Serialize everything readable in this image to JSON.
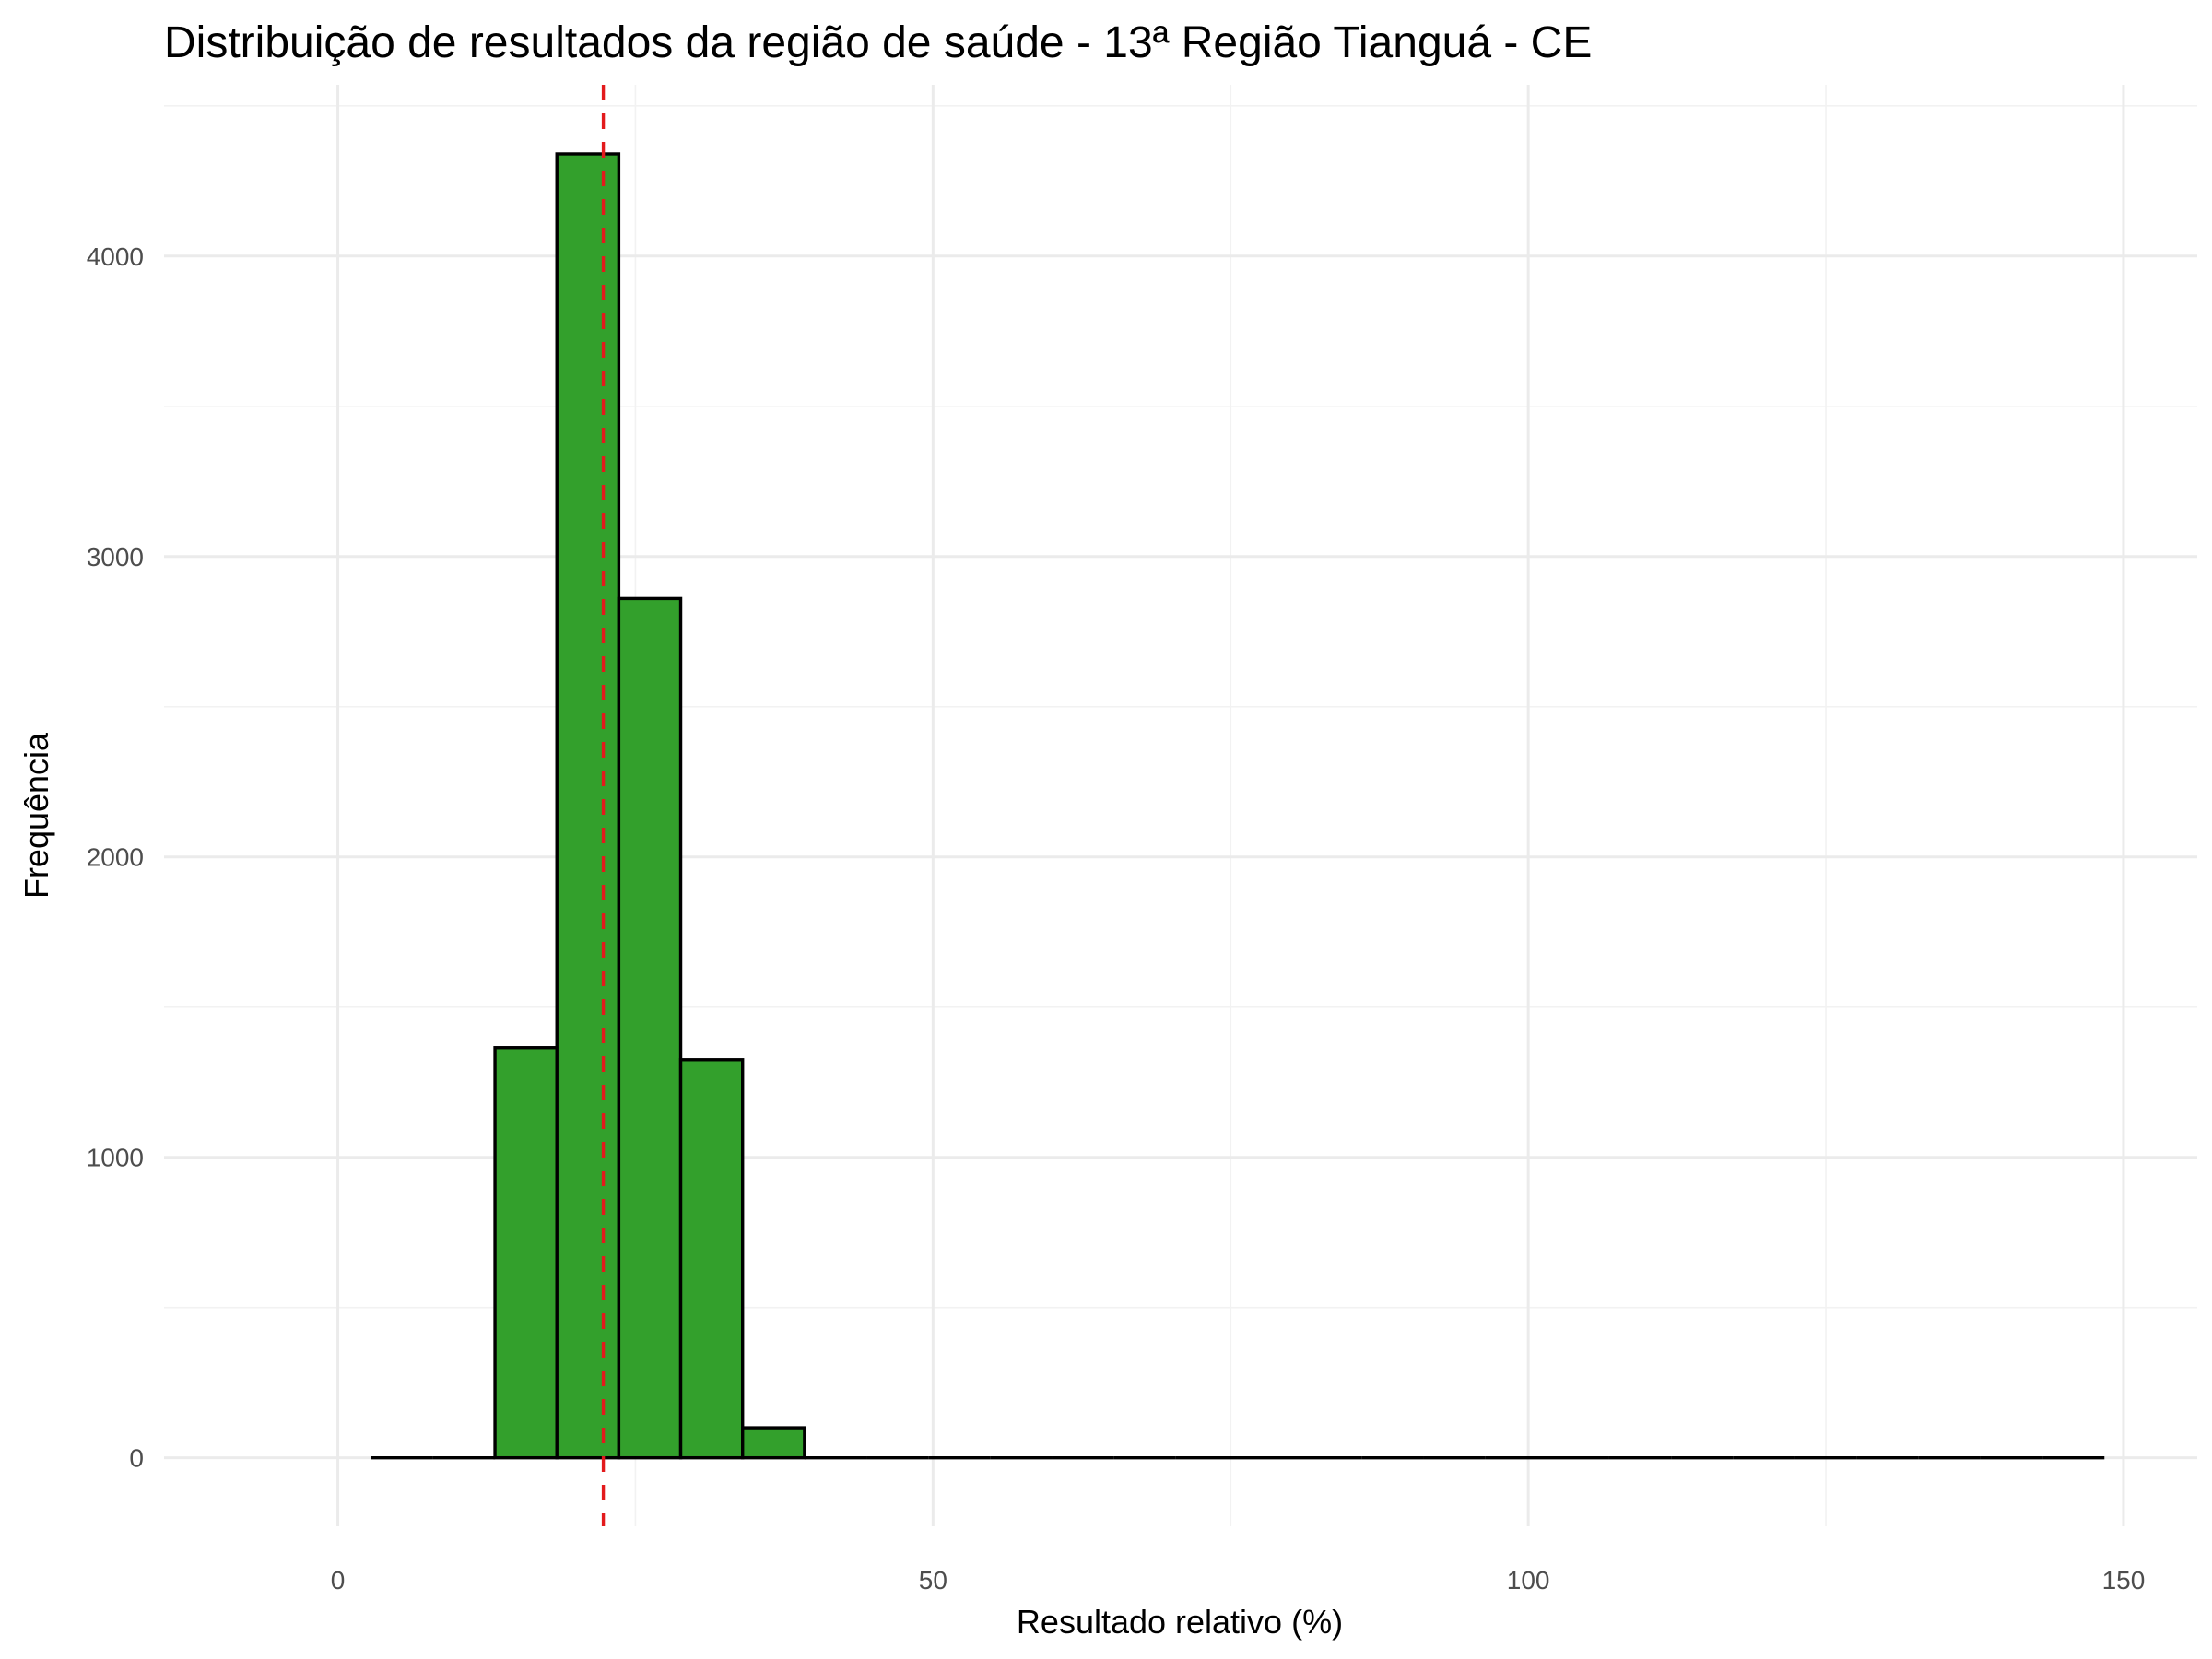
{
  "chart_data": {
    "type": "bar",
    "title": "Distribuição de resultados da região de saúde - 13ª Região Tianguá - CE",
    "xlabel": "Resultado relativo (%)",
    "ylabel": "Frequência",
    "xlim": [
      -14.6,
      156.2
    ],
    "ylim": [
      -228,
      4570
    ],
    "x_ticks": [
      0,
      50,
      100,
      150
    ],
    "y_ticks": [
      0,
      1000,
      2000,
      3000,
      4000
    ],
    "x_tick_labels": [
      "0",
      "50",
      "100",
      "150"
    ],
    "y_tick_labels": [
      "0",
      "1000",
      "2000",
      "3000",
      "4000"
    ],
    "grid": true,
    "bin_edges": [
      2.8,
      8.0,
      13.2,
      18.4,
      23.6,
      28.8,
      34.0,
      39.2,
      44.4,
      49.6,
      54.8,
      60.0,
      65.2,
      70.4,
      75.6,
      80.8,
      86.0,
      91.2,
      96.4,
      101.6,
      106.8,
      112.0,
      117.2,
      122.4,
      127.6,
      132.8,
      138.0,
      143.2,
      148.4
    ],
    "values": [
      0,
      0,
      1365,
      4340,
      2860,
      1325,
      100,
      0,
      0,
      0,
      0,
      0,
      0,
      0,
      0,
      0,
      0,
      0,
      0,
      0,
      0,
      0,
      0,
      0,
      0,
      0,
      0,
      0
    ],
    "reference_line": {
      "x": 22.3,
      "style": "dashed",
      "color": "#e31a1c"
    },
    "colors": {
      "bar_fill": "#33a02c",
      "bar_outline": "#000000",
      "grid": "#ebebeb"
    }
  }
}
